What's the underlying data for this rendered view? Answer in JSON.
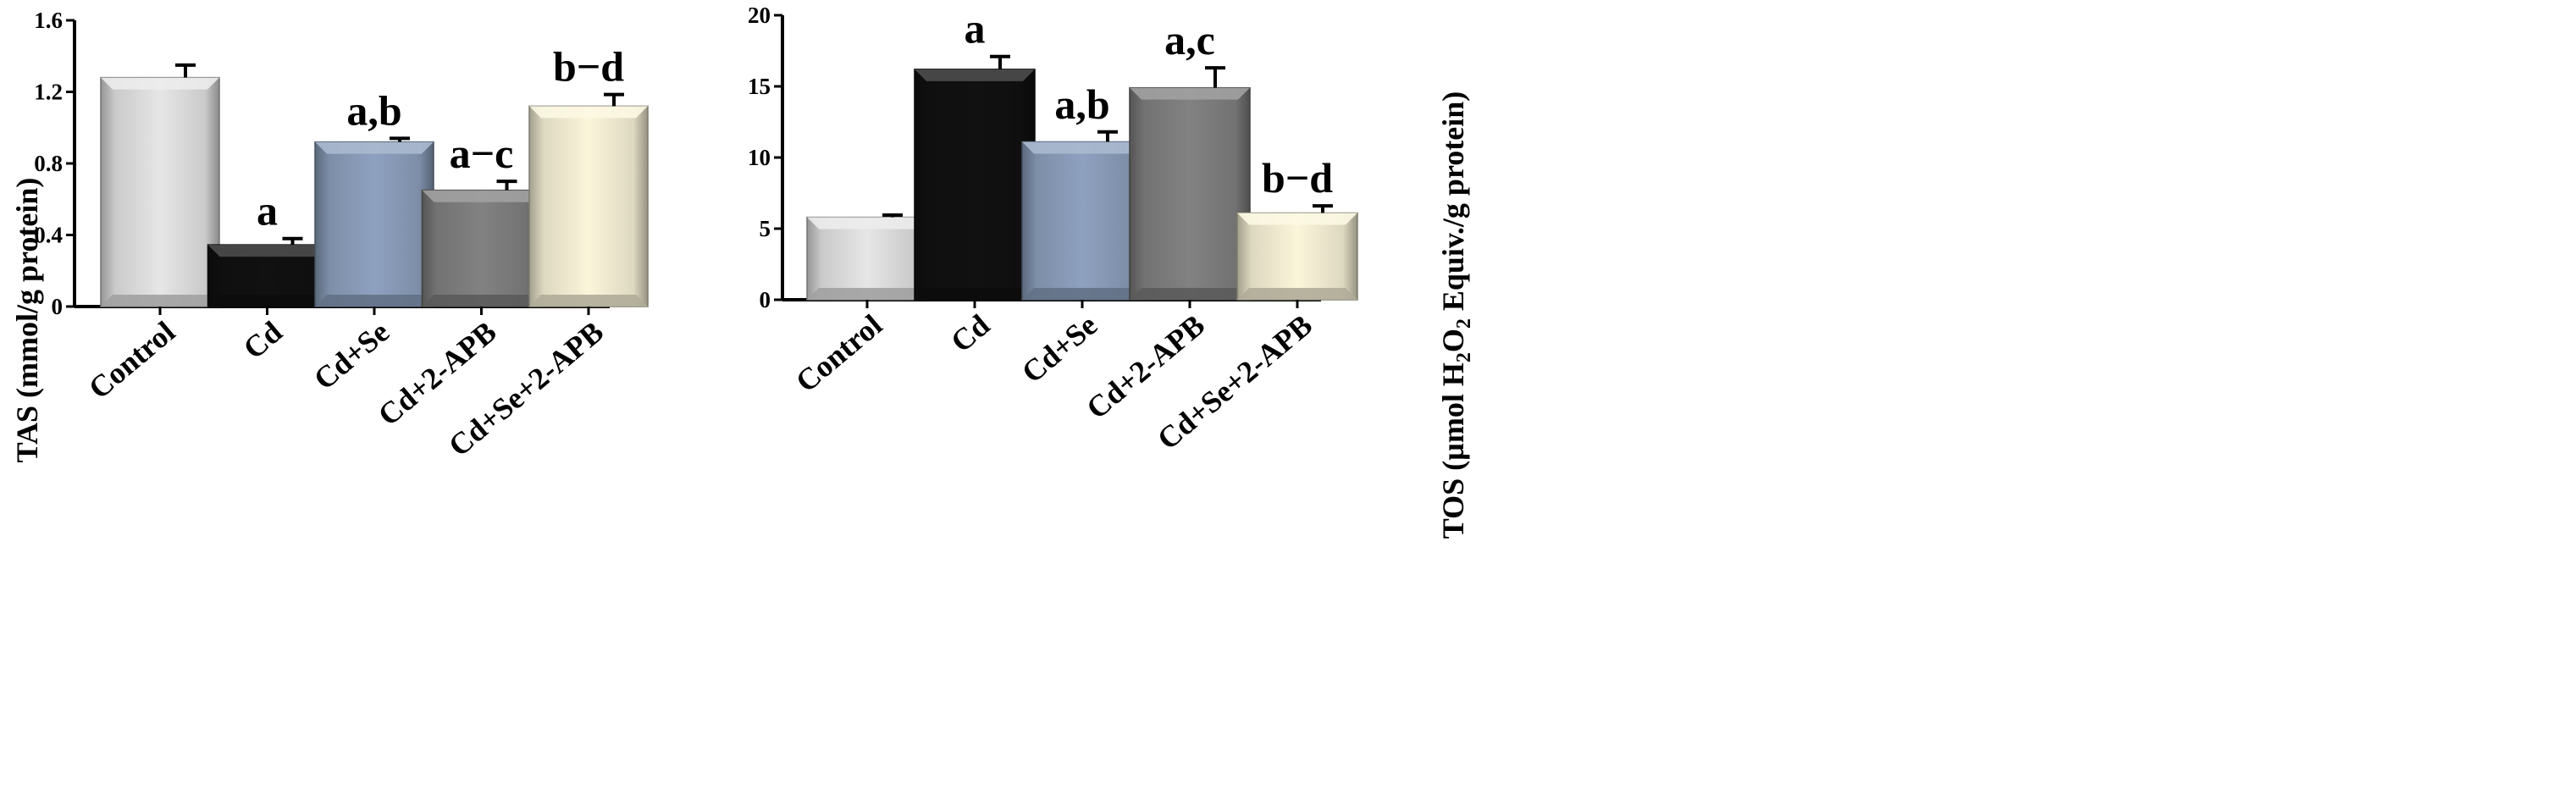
{
  "chart_data": [
    {
      "type": "bar",
      "categories": [
        "Control",
        "Cd",
        "Cd+Se",
        "Cd+2-APB",
        "Cd+Se+2-APB"
      ],
      "values": [
        1.28,
        0.345,
        0.92,
        0.65,
        1.12
      ],
      "errors": [
        0.07,
        0.035,
        0.02,
        0.05,
        0.065
      ],
      "annotations": [
        "",
        "a",
        "a,b",
        "a−c",
        "b−d"
      ],
      "colors": [
        "#e6e6e6",
        "#111111",
        "#8ea1bf",
        "#828282",
        "#fbf5da"
      ],
      "ylabel": "TAS (mmol/g protein)",
      "ylim": [
        0,
        1.6
      ],
      "yticks": [
        0,
        0.4,
        0.8,
        1.2,
        1.6
      ],
      "ytick_labels": [
        "0",
        "0.4",
        "0.8",
        "1.2",
        "1.6"
      ]
    },
    {
      "type": "bar",
      "categories": [
        "Control",
        "Cd",
        "Cd+Se",
        "Cd+2-APB",
        "Cd+Se+2-APB"
      ],
      "values": [
        5.8,
        16.2,
        11.1,
        14.9,
        6.1
      ],
      "errors": [
        0.15,
        0.9,
        0.7,
        1.4,
        0.5
      ],
      "annotations": [
        "",
        "a",
        "a,b",
        "a,c",
        "b−d"
      ],
      "colors": [
        "#e6e6e6",
        "#111111",
        "#8ea1bf",
        "#828282",
        "#fbf5da"
      ],
      "ylabel": "TOS (µmol H2O2 Equiv./g protein)",
      "ylabel_parts": [
        "TOS (µmol H",
        "2",
        "O",
        "2",
        " Equiv./g protein)"
      ],
      "ylim": [
        0,
        20
      ],
      "yticks": [
        0,
        5,
        10,
        15,
        20
      ],
      "ytick_labels": [
        "0",
        "5",
        "10",
        "15",
        "20"
      ]
    }
  ]
}
